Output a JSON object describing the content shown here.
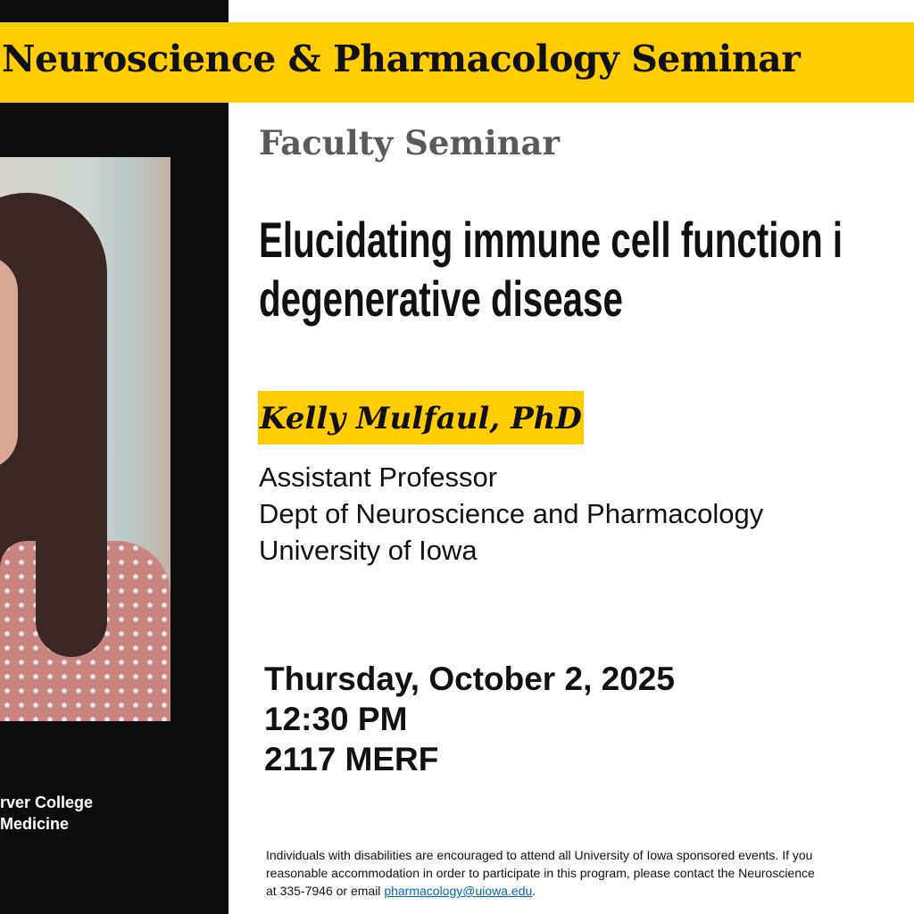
{
  "banner": {
    "title": "Neuroscience & Pharmacology Seminar"
  },
  "sidebar": {
    "college_line1": "rver College",
    "college_line2": "Medicine"
  },
  "seminar": {
    "type": "Faculty Seminar",
    "title_line1": "Elucidating immune cell function i",
    "title_line2": "degenerative disease"
  },
  "speaker": {
    "name": "Kelly Mulfaul, PhD",
    "position": "Assistant Professor",
    "department": "Dept of Neuroscience and Pharmacology",
    "institution": "University of Iowa"
  },
  "event": {
    "date": "Thursday, October 2, 2025",
    "time": "12:30 PM",
    "location": "2117 MERF"
  },
  "accessibility": {
    "line1": "Individuals with disabilities are encouraged to attend all University of Iowa sponsored events.  If you",
    "line2": "reasonable accommodation in order to participate in this program, please contact the Neuroscience",
    "line3_prefix": "at 335-7946 or email ",
    "email": "pharmacology@uiowa.edu",
    "line3_suffix": "."
  },
  "colors": {
    "brand_gold": "#ffcd00",
    "panel_black": "#0d0d0d",
    "link": "#0563c1"
  }
}
